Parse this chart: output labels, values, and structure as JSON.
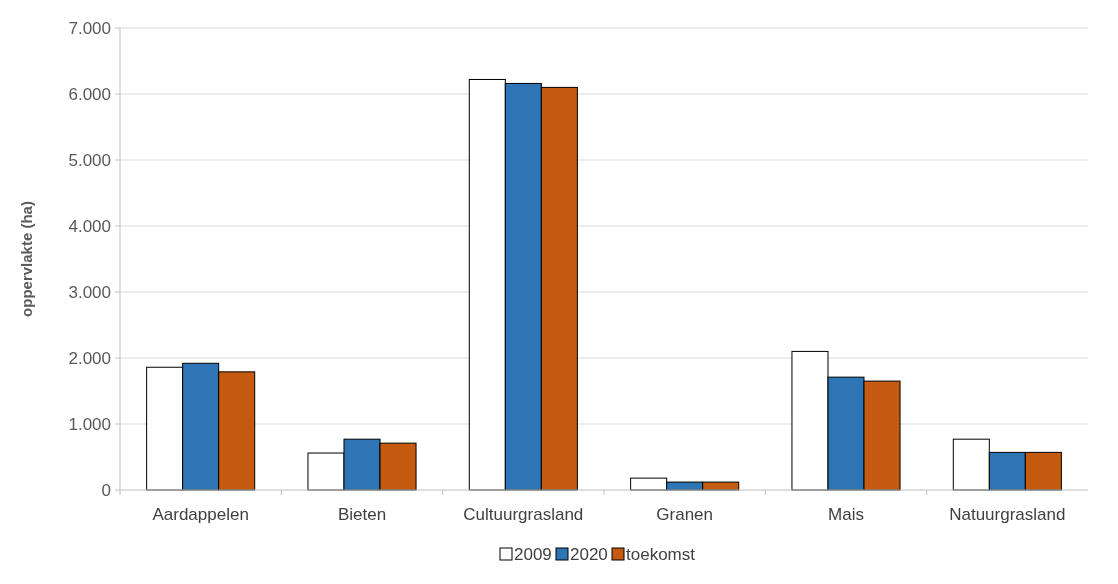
{
  "chart_data": {
    "type": "bar",
    "ylabel": "oppervlakte (ha)",
    "categories": [
      "Aardappelen",
      "Bieten",
      "Cultuurgrasland",
      "Granen",
      "Mais",
      "Natuurgrasland"
    ],
    "series": [
      {
        "name": "2009",
        "color": "#ffffff",
        "values": [
          1860,
          560,
          6220,
          180,
          2100,
          770
        ]
      },
      {
        "name": "2020",
        "color": "#2e75b6",
        "values": [
          1920,
          770,
          6160,
          120,
          1710,
          570
        ]
      },
      {
        "name": "toekomst",
        "color": "#c55a11",
        "values": [
          1790,
          710,
          6100,
          120,
          1650,
          570
        ]
      }
    ],
    "ylim": [
      0,
      7000
    ],
    "yticks": [
      {
        "value": 0,
        "label": "0"
      },
      {
        "value": 1000,
        "label": "1.000"
      },
      {
        "value": 2000,
        "label": "2.000"
      },
      {
        "value": 3000,
        "label": "3.000"
      },
      {
        "value": 4000,
        "label": "4.000"
      },
      {
        "value": 5000,
        "label": "5.000"
      },
      {
        "value": 6000,
        "label": "6.000"
      },
      {
        "value": 7000,
        "label": "7.000"
      }
    ],
    "grid": "y",
    "legend": "bottom"
  }
}
